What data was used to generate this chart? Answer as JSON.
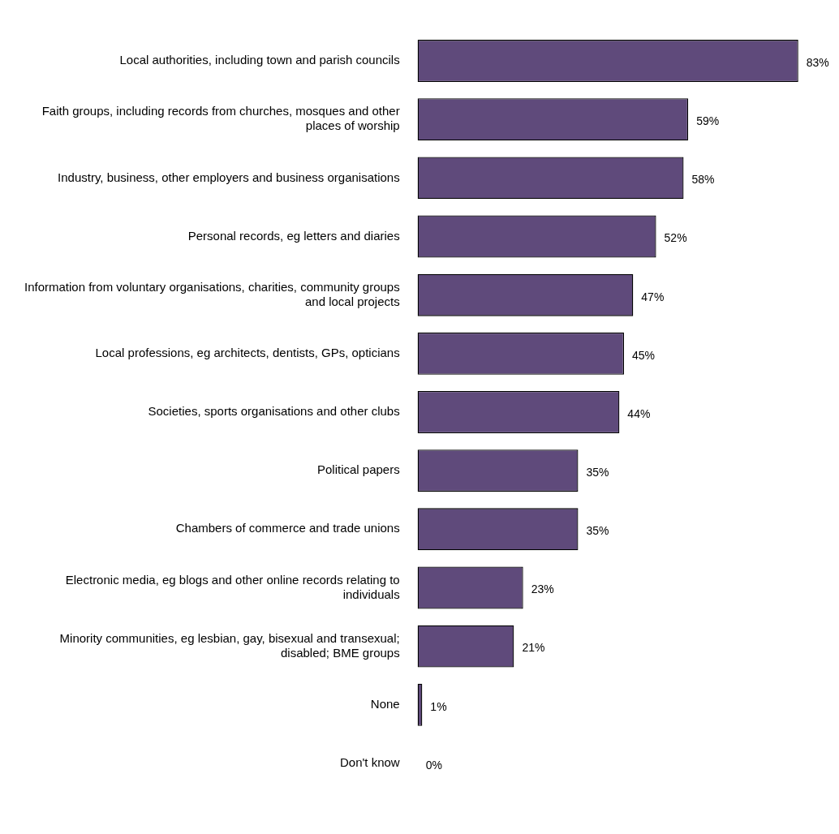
{
  "chart_data": {
    "type": "bar",
    "orientation": "horizontal",
    "tick_labels": "y",
    "legend": false,
    "color": "#5f4a7b",
    "categories": [
      "Local authorities, including town and parish councils",
      "Faith groups, including records from churches, mosques and other places of worship",
      "Industry, business, other employers and business organisations",
      "Personal records, eg letters and diaries",
      "Information from voluntary organisations, charities, community groups and local projects",
      "Local professions, eg architects, dentists, GPs, opticians",
      "Societies, sports organisations and other clubs",
      "Political papers",
      "Chambers of commerce and trade unions",
      "Electronic media, eg blogs and other online records relating to individuals",
      "Minority communities, eg lesbian, gay, bisexual and transexual; disabled; BME groups",
      "None",
      "Don't know"
    ],
    "values": [
      83,
      59,
      58,
      52,
      47,
      45,
      44,
      35,
      35,
      23,
      21,
      1,
      0
    ],
    "value_labels": [
      "83%",
      "59%",
      "58%",
      "52%",
      "47%",
      "45%",
      "44%",
      "35%",
      "35%",
      "23%",
      "21%",
      "1%",
      "0%"
    ]
  }
}
